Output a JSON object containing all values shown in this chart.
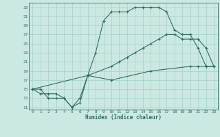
{
  "xlabel": "Humidex (Indice chaleur)",
  "ylabel": "",
  "bg_color": "#cce8e2",
  "grid_color": "#aad4cc",
  "line_color": "#2e6e62",
  "xlim": [
    -0.5,
    23.5
  ],
  "ylim": [
    10.5,
    34
  ],
  "xticks": [
    0,
    1,
    2,
    3,
    4,
    5,
    6,
    7,
    8,
    9,
    10,
    11,
    12,
    13,
    14,
    15,
    16,
    17,
    18,
    19,
    20,
    21,
    22,
    23
  ],
  "yticks": [
    11,
    13,
    15,
    17,
    19,
    21,
    23,
    25,
    27,
    29,
    31,
    33
  ],
  "line1_x": [
    0,
    1,
    2,
    3,
    4,
    5,
    6,
    7,
    8,
    9,
    10,
    11,
    12,
    13,
    14,
    15,
    16,
    17,
    18,
    19,
    20,
    21,
    22,
    23
  ],
  "line1_y": [
    15,
    15,
    13,
    13,
    13,
    11,
    13,
    18,
    23,
    30,
    32,
    32,
    32,
    33,
    33,
    33,
    33,
    32,
    28,
    27,
    27,
    24,
    20,
    20
  ],
  "line2_x": [
    0,
    7,
    10,
    11,
    12,
    13,
    14,
    15,
    16,
    17,
    18,
    19,
    20,
    21,
    22,
    23
  ],
  "line2_y": [
    15,
    18,
    20,
    21,
    22,
    23,
    24,
    25,
    26,
    27,
    27,
    26,
    26,
    26,
    24,
    20
  ],
  "line3_x": [
    0,
    1,
    2,
    3,
    4,
    5,
    6,
    7,
    10,
    15,
    20,
    21,
    22,
    23
  ],
  "line3_y": [
    15,
    14,
    14,
    14,
    13,
    11,
    12,
    18,
    17,
    19,
    20,
    20,
    20,
    20
  ]
}
